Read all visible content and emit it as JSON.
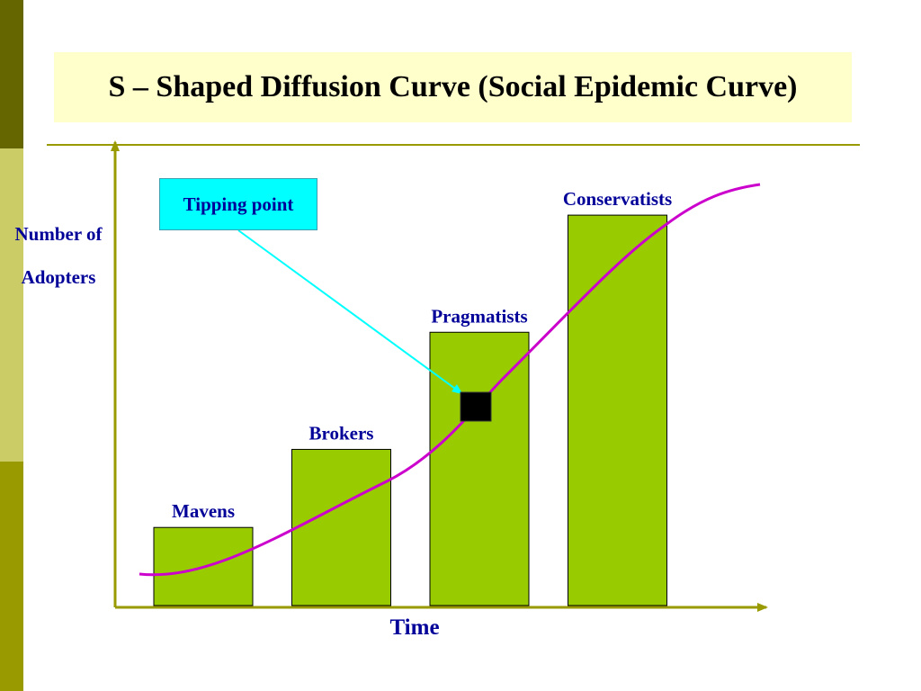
{
  "title": "S – Shaped Diffusion Curve (Social Epidemic Curve)",
  "y_axis_label_line1": "Number of",
  "y_axis_label_line2": "Adopters",
  "x_axis_label": "Time",
  "callout_label": "Tipping point",
  "chart_data": {
    "type": "bar",
    "categories": [
      "Mavens",
      "Brokers",
      "Pragmatists",
      "Conservatists"
    ],
    "values": [
      1,
      2,
      3.5,
      5
    ],
    "ylim": [
      0,
      5.9
    ]
  },
  "colors": {
    "bar_fill": "#99cc00",
    "curve": "#cc00cc",
    "axis": "#999900",
    "label_text": "#000099",
    "callout_fill": "#00ffff",
    "callout_arrow": "#00ffff",
    "tipping_marker": "#000000",
    "title_background": "#ffffcc",
    "strip_top": "#666600",
    "strip_middle": "#cccc66",
    "strip_bottom": "#999900"
  }
}
